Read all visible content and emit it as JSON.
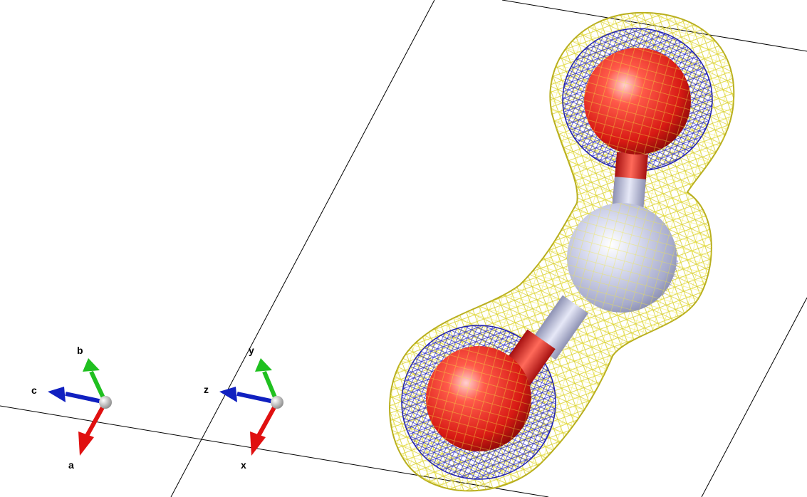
{
  "viewer": {
    "background": "#ffffff",
    "cell_line_color": "#000000"
  },
  "crystal_axes": {
    "a": "a",
    "b": "b",
    "c": "c"
  },
  "cartesian_axes": {
    "x": "x",
    "y": "y",
    "z": "z"
  },
  "axis_colors": {
    "a_x": "#e01010",
    "b_y": "#20c020",
    "c_z": "#1020c0",
    "origin": "#d8d8d8"
  },
  "molecule": {
    "atoms": [
      "O",
      "C",
      "O"
    ],
    "atom_colors": {
      "O": "#e02020",
      "C": "#c0c4de"
    },
    "isosurfaces": [
      {
        "name": "outer-isosurface",
        "color": "#cfc62a",
        "style": "wireframe"
      },
      {
        "name": "inner-isosurface",
        "color": "#2020c0",
        "style": "wireframe"
      }
    ]
  }
}
